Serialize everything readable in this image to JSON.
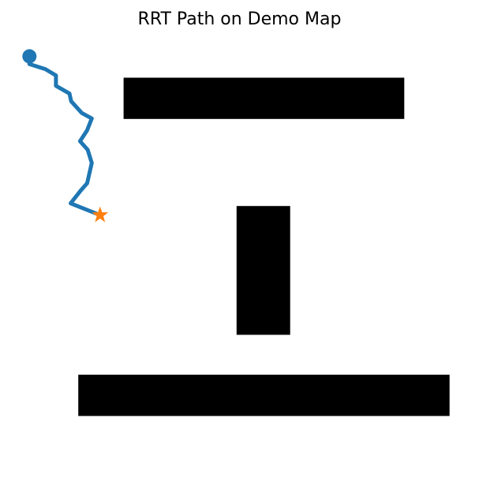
{
  "chart_data": {
    "type": "line",
    "title": "RRT Path on Demo Map",
    "xlabel": "",
    "ylabel": "",
    "axes_visible": false,
    "grid": false,
    "obstacles": [
      {
        "name": "obstacle-top-bar",
        "x0": 7.3,
        "x1": 55.0,
        "y0": 81.6,
        "y1": 90.7,
        "color": "#000000"
      },
      {
        "name": "obstacle-center-column",
        "x0": 26.5,
        "x1": 35.6,
        "y0": 51.0,
        "y1": 62.4,
        "color": "#000000"
      },
      {
        "name": "obstacle-center-column",
        "x0": 26.5,
        "x1": 35.6,
        "y0": 34.0,
        "y1": 62.4,
        "color": "#000000"
      },
      {
        "name": "obstacle-bottom-bar",
        "x0": -0.4,
        "x1": 62.7,
        "y0": 16.1,
        "y1": 25.2,
        "color": "#000000"
      }
    ],
    "series": [
      {
        "color": "#1f77b4",
        "x": [
          -8.7,
          -8.7,
          -6.0,
          -4.2,
          -4.2,
          -1.9,
          -1.6,
          0.2,
          1.9,
          1.1,
          -0.1,
          1.2,
          1.9,
          1.1,
          0.0,
          -1.7,
          3.3
        ],
        "y": [
          95.4,
          93.7,
          92.6,
          91.2,
          88.9,
          87.2,
          85.5,
          82.9,
          81.7,
          79.1,
          76.7,
          74.8,
          71.9,
          67.4,
          65.8,
          63.0,
          60.4
        ]
      }
    ],
    "start": {
      "x": -8.7,
      "y": 95.4,
      "marker": "circle",
      "color": "#1f77b4"
    },
    "goal": {
      "x": 3.3,
      "y": 60.4,
      "marker": "star",
      "color": "#ff7f0e"
    },
    "xlim": [
      -13.3,
      67.3
    ],
    "ylim": [
      0,
      100
    ]
  }
}
